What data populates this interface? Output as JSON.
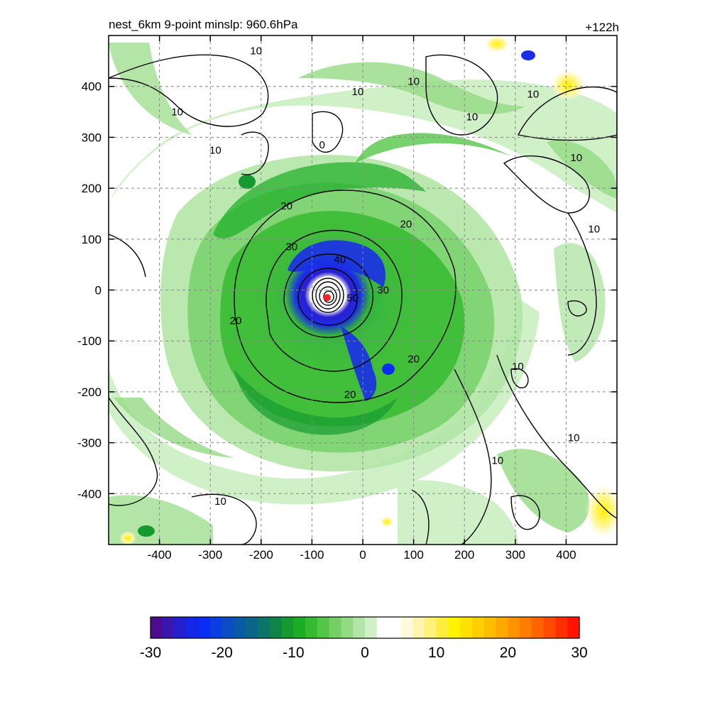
{
  "chart_data": {
    "type": "heatmap",
    "title_left": "nest_6km  9-point minslp: 960.6hPa",
    "title_right": "+122h",
    "xlim": [
      -500,
      500
    ],
    "ylim": [
      -500,
      500
    ],
    "grid": true,
    "x_ticks": [
      -400,
      -300,
      -200,
      -100,
      0,
      100,
      200,
      300,
      400
    ],
    "y_ticks": [
      400,
      300,
      200,
      100,
      0,
      -100,
      -200,
      -300,
      -400
    ],
    "center": {
      "x": -70,
      "y": -15,
      "marker_color": "#ff2020"
    },
    "contour_labels": [
      {
        "text": "10",
        "x": -210,
        "y": 470
      },
      {
        "text": "10",
        "x": -10,
        "y": 390
      },
      {
        "text": "10",
        "x": 100,
        "y": 410
      },
      {
        "text": "10",
        "x": 215,
        "y": 340
      },
      {
        "text": "10",
        "x": 335,
        "y": 385
      },
      {
        "text": "10",
        "x": -365,
        "y": 350
      },
      {
        "text": "10",
        "x": -290,
        "y": 275
      },
      {
        "text": "0",
        "x": -80,
        "y": 285
      },
      {
        "text": "10",
        "x": 420,
        "y": 260
      },
      {
        "text": "10",
        "x": 455,
        "y": 120
      },
      {
        "text": "20",
        "x": -150,
        "y": 165
      },
      {
        "text": "20",
        "x": 85,
        "y": 130
      },
      {
        "text": "30",
        "x": -140,
        "y": 85
      },
      {
        "text": "40",
        "x": -45,
        "y": 60
      },
      {
        "text": "30",
        "x": 40,
        "y": 0
      },
      {
        "text": "50",
        "x": -20,
        "y": -15
      },
      {
        "text": "20",
        "x": -250,
        "y": -60
      },
      {
        "text": "20",
        "x": 100,
        "y": -135
      },
      {
        "text": "20",
        "x": -25,
        "y": -205
      },
      {
        "text": "10",
        "x": 305,
        "y": -150
      },
      {
        "text": "10",
        "x": 415,
        "y": -290
      },
      {
        "text": "10",
        "x": 265,
        "y": -335
      },
      {
        "text": "10",
        "x": -280,
        "y": -415
      }
    ],
    "colorbar": {
      "ticks": [
        "-30",
        "-20",
        "-10",
        "0",
        "10",
        "20",
        "30"
      ],
      "range": [
        -30,
        30
      ],
      "colors": [
        "#4b0d8c",
        "#3a16b0",
        "#2420cf",
        "#1426e6",
        "#0a2df5",
        "#0a3ee0",
        "#0c4dc4",
        "#0b5aa6",
        "#0a6688",
        "#0c7468",
        "#0f8448",
        "#159a30",
        "#1aae25",
        "#36bb30",
        "#55c548",
        "#74cf65",
        "#93da85",
        "#b2e5a6",
        "#d0f0c8",
        "#ffffff",
        "#ffffff",
        "#fffadd",
        "#fff5b0",
        "#fff27a",
        "#ffee3d",
        "#fff400",
        "#ffe200",
        "#ffd000",
        "#ffbd00",
        "#ffa800",
        "#ff9300",
        "#ff7c00",
        "#ff6400",
        "#ff4a00",
        "#ff2e00",
        "#ff1400"
      ]
    }
  }
}
